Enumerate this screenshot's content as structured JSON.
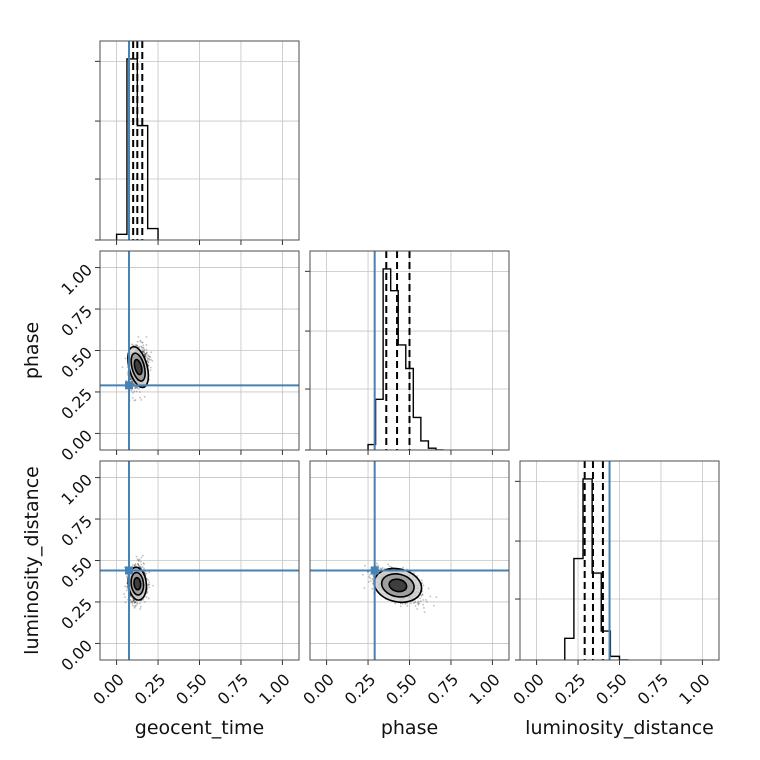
{
  "chart_data": {
    "type": "corner",
    "parameters": [
      "geocent_time",
      "phase",
      "luminosity_distance"
    ],
    "axis_range": [
      -0.1,
      1.1
    ],
    "tick_labels": [
      "0.00",
      "0.25",
      "0.50",
      "0.75",
      "1.00"
    ],
    "tick_values": [
      0.0,
      0.25,
      0.5,
      0.75,
      1.0
    ],
    "grid": true,
    "colors": {
      "truth": "#4682b4",
      "histogram": "#000000",
      "quantiles": "#000000",
      "frame": "#4d4d4d",
      "grid": "#c4c4c4"
    },
    "truths": {
      "geocent_time": 0.075,
      "phase": 0.29,
      "luminosity_distance": 0.44
    },
    "histograms": [
      {
        "parameter": "geocent_time",
        "bin_edges": [
          0.0,
          0.0625,
          0.125,
          0.1875,
          0.25
        ],
        "counts": [
          3,
          95,
          60,
          6
        ],
        "quantiles": [
          0.1,
          0.125,
          0.155
        ]
      },
      {
        "parameter": "phase",
        "bin_edges": [
          0.25,
          0.2955,
          0.341,
          0.3865,
          0.432,
          0.4775,
          0.523,
          0.5685,
          0.614,
          0.6595,
          0.705
        ],
        "counts": [
          3,
          28,
          100,
          88,
          58,
          45,
          18,
          5,
          1,
          0
        ],
        "quantiles": [
          0.36,
          0.425,
          0.5
        ]
      },
      {
        "parameter": "luminosity_distance",
        "bin_edges": [
          0.17,
          0.225,
          0.28,
          0.335,
          0.39,
          0.445,
          0.5,
          0.555
        ],
        "counts": [
          12,
          56,
          100,
          48,
          16,
          2,
          0
        ],
        "quantiles": [
          0.29,
          0.34,
          0.4
        ]
      }
    ],
    "pairs": [
      {
        "x": "geocent_time",
        "y": "phase",
        "center": [
          0.13,
          0.4
        ],
        "spread": [
          0.03,
          0.07
        ],
        "corr": 0.2
      },
      {
        "x": "geocent_time",
        "y": "luminosity_distance",
        "center": [
          0.125,
          0.36
        ],
        "spread": [
          0.03,
          0.055
        ],
        "corr": 0.1
      },
      {
        "x": "phase",
        "y": "luminosity_distance",
        "center": [
          0.43,
          0.35
        ],
        "spread": [
          0.08,
          0.055
        ],
        "corr": -0.55
      }
    ]
  }
}
